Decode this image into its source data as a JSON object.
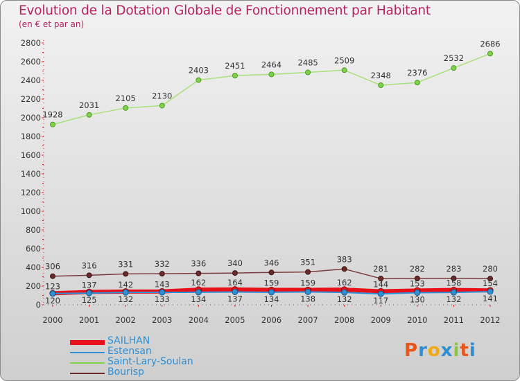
{
  "title": "Evolution de la Dotation Globale de Fonctionnement par Habitant",
  "subtitle": "(en € et par an)",
  "logo": {
    "text": "Proxiti",
    "colors": [
      "#e8561c",
      "#2e8fd5",
      "#f0a814",
      "#2e8fd5",
      "#8dc63f",
      "#e8561c",
      "#2e8fd5"
    ]
  },
  "chart_data": {
    "type": "line",
    "x": [
      "2000",
      "2001",
      "2002",
      "2003",
      "2004",
      "2005",
      "2006",
      "2007",
      "2008",
      "2009",
      "2010",
      "2011",
      "2012"
    ],
    "ylim": [
      0,
      2800
    ],
    "yticks": [
      0,
      200,
      400,
      600,
      800,
      1000,
      1200,
      1400,
      1600,
      1800,
      2000,
      2200,
      2400,
      2600,
      2800
    ],
    "grid": false,
    "legend_position": "bottom-left",
    "series": [
      {
        "name": "SAILHAN",
        "color": "#e8111a",
        "values": [
          123,
          137,
          142,
          143,
          162,
          164,
          159,
          159,
          162,
          144,
          153,
          158,
          154
        ],
        "labels": [
          "123",
          "137",
          "142",
          "143",
          "162",
          "164",
          "159",
          "159",
          "162",
          "144",
          "153",
          "158",
          "154"
        ]
      },
      {
        "name": "Estensan",
        "color": "#2e8fd5",
        "values": [
          120,
          125,
          132,
          133,
          134,
          137,
          134,
          138,
          132,
          117,
          130,
          132,
          141
        ],
        "labels": [
          "120",
          "125",
          "132",
          "133",
          "134",
          "137",
          "134",
          "138",
          "132",
          "117",
          "130",
          "132",
          "141"
        ]
      },
      {
        "name": "Saint-Lary-Soulan",
        "color": "#7fd24a",
        "values": [
          1928,
          2031,
          2105,
          2130,
          2403,
          2451,
          2464,
          2485,
          2509,
          2348,
          2376,
          2532,
          2686
        ],
        "labels": [
          "1928",
          "2031",
          "2105",
          "2130",
          "2403",
          "2451",
          "2464",
          "2485",
          "2509",
          "2348",
          "2376",
          "2532",
          "2686"
        ]
      },
      {
        "name": "Bourisp",
        "color": "#6b2a2a",
        "values": [
          306,
          316,
          331,
          332,
          336,
          340,
          346,
          351,
          383,
          281,
          282,
          283,
          280
        ],
        "labels": [
          "306",
          "316",
          "331",
          "332",
          "336",
          "340",
          "346",
          "351",
          "383",
          "281",
          "282",
          "283",
          "280"
        ]
      }
    ]
  }
}
